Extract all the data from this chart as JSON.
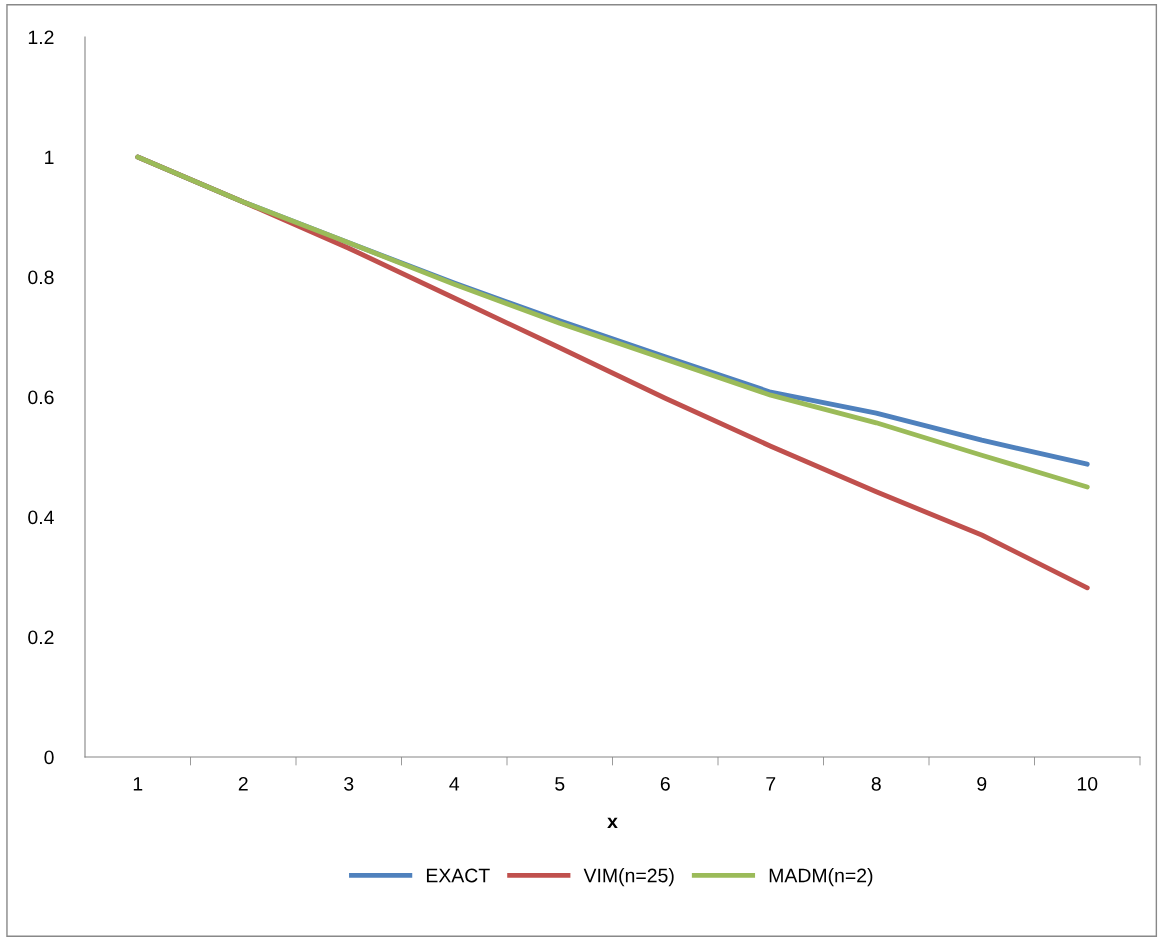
{
  "chart_data": {
    "type": "line",
    "xlabel": "x",
    "categories": [
      "1",
      "2",
      "3",
      "4",
      "5",
      "6",
      "7",
      "8",
      "9",
      "10"
    ],
    "series": [
      {
        "name": "EXACT",
        "color": "#4f81bd",
        "values": [
          1.0,
          0.925,
          0.857,
          0.79,
          0.727,
          0.667,
          0.608,
          0.573,
          0.528,
          0.488
        ]
      },
      {
        "name": "VIM(n=25)",
        "color": "#c0504d",
        "values": [
          1.0,
          0.925,
          0.848,
          0.765,
          0.682,
          0.598,
          0.518,
          0.442,
          0.37,
          0.282
        ]
      },
      {
        "name": "MADM(n=2)",
        "color": "#9bbb59",
        "values": [
          1.0,
          0.925,
          0.857,
          0.788,
          0.723,
          0.663,
          0.603,
          0.557,
          0.503,
          0.45
        ]
      }
    ],
    "ylim": [
      0,
      1.2
    ],
    "yticks": [
      0,
      0.2,
      0.4,
      0.6,
      0.8,
      1,
      1.2
    ],
    "grid": false,
    "legend": "bottom",
    "marker": "none",
    "line_style": "solid"
  }
}
